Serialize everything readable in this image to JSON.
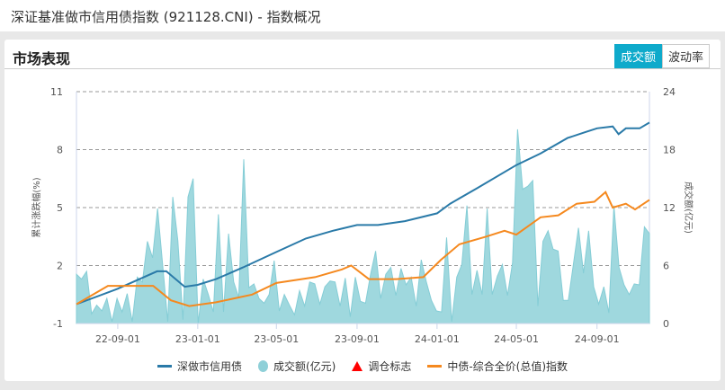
{
  "header": {
    "title": "深证基准做市信用债指数 (921128.CNI) - 指数概况"
  },
  "card": {
    "title": "市场表现",
    "buttons": [
      {
        "label": "成交额",
        "active": true
      },
      {
        "label": "波动率",
        "active": false
      }
    ]
  },
  "chart_data": {
    "type": "line",
    "x_range": [
      "2022-06-30",
      "2024-11-20"
    ],
    "x_ticks": [
      "22-09-01",
      "23-01-01",
      "23-05-01",
      "23-09-01",
      "24-01-01",
      "24-05-01",
      "24-09-01"
    ],
    "x_tick_dates": [
      "2022-09-01",
      "2023-01-01",
      "2023-05-01",
      "2023-09-01",
      "2024-01-01",
      "2024-05-01",
      "2024-09-01"
    ],
    "ylabel": "累计涨跌幅(%)",
    "ylim": [
      -1,
      11
    ],
    "y_ticks": [
      -1,
      2,
      5,
      8,
      11
    ],
    "y2label": "成交额(亿元)",
    "y2lim": [
      0,
      24
    ],
    "y2_ticks": [
      0,
      6,
      12,
      18,
      24
    ],
    "grid": true,
    "legend_position": "bottom",
    "colors": {
      "index": "#2a7aa8",
      "volume": "#8fd0d8",
      "marker": "#ff0000",
      "benchmark": "#f5891f"
    },
    "legend": [
      "深做市信用债",
      "成交额(亿元)",
      "调仓标志",
      "中债-综合全价(总值)指数"
    ],
    "series": [
      {
        "name": "深做市信用债",
        "axis": "left",
        "points": [
          [
            "2022-06-30",
            0.0
          ],
          [
            "2022-09-01",
            0.8
          ],
          [
            "2022-10-31",
            1.7
          ],
          [
            "2022-11-14",
            1.7
          ],
          [
            "2022-12-12",
            0.9
          ],
          [
            "2023-01-01",
            1.0
          ],
          [
            "2023-01-29",
            1.3
          ],
          [
            "2023-03-11",
            1.9
          ],
          [
            "2023-05-01",
            2.7
          ],
          [
            "2023-06-15",
            3.4
          ],
          [
            "2023-07-26",
            3.8
          ],
          [
            "2023-09-01",
            4.1
          ],
          [
            "2023-10-03",
            4.1
          ],
          [
            "2023-11-13",
            4.3
          ],
          [
            "2024-01-01",
            4.7
          ],
          [
            "2024-01-21",
            5.2
          ],
          [
            "2024-03-02",
            6.0
          ],
          [
            "2024-05-01",
            7.2
          ],
          [
            "2024-06-07",
            7.8
          ],
          [
            "2024-07-18",
            8.6
          ],
          [
            "2024-08-14",
            8.9
          ],
          [
            "2024-09-01",
            9.1
          ],
          [
            "2024-09-25",
            9.2
          ],
          [
            "2024-10-04",
            8.8
          ],
          [
            "2024-10-15",
            9.1
          ],
          [
            "2024-11-05",
            9.1
          ],
          [
            "2024-11-20",
            9.4
          ]
        ]
      },
      {
        "name": "中债-综合全价(总值)指数",
        "axis": "left",
        "points": [
          [
            "2022-06-30",
            0.0
          ],
          [
            "2022-08-17",
            0.95
          ],
          [
            "2022-10-25",
            0.95
          ],
          [
            "2022-11-21",
            0.2
          ],
          [
            "2022-12-19",
            -0.1
          ],
          [
            "2023-01-29",
            0.1
          ],
          [
            "2023-03-25",
            0.5
          ],
          [
            "2023-05-01",
            1.1
          ],
          [
            "2023-06-29",
            1.4
          ],
          [
            "2023-08-09",
            1.8
          ],
          [
            "2023-08-23",
            2.0
          ],
          [
            "2023-09-19",
            1.3
          ],
          [
            "2023-10-31",
            1.3
          ],
          [
            "2023-12-11",
            1.4
          ],
          [
            "2024-01-07",
            2.3
          ],
          [
            "2024-02-04",
            3.1
          ],
          [
            "2024-03-16",
            3.5
          ],
          [
            "2024-04-13",
            3.8
          ],
          [
            "2024-05-01",
            3.6
          ],
          [
            "2024-06-07",
            4.5
          ],
          [
            "2024-07-04",
            4.6
          ],
          [
            "2024-08-01",
            5.2
          ],
          [
            "2024-08-28",
            5.3
          ],
          [
            "2024-09-14",
            5.8
          ],
          [
            "2024-09-25",
            5.0
          ],
          [
            "2024-10-15",
            5.2
          ],
          [
            "2024-10-29",
            4.9
          ],
          [
            "2024-11-20",
            5.4
          ]
        ]
      },
      {
        "name": "成交额(亿元)",
        "axis": "right",
        "type": "area",
        "values": [
          5.1,
          4.6,
          5.4,
          1.0,
          1.9,
          1.3,
          2.6,
          0.2,
          2.6,
          1.2,
          3.1,
          0.2,
          4.8,
          4.3,
          8.5,
          6.8,
          11.9,
          6.1,
          0.2,
          13.1,
          8.6,
          0.4,
          13.1,
          15.0,
          0,
          4.6,
          3.0,
          1.2,
          11.3,
          1.2,
          9.3,
          4.3,
          2.7,
          17.0,
          3.7,
          4.1,
          2.6,
          2.1,
          3.0,
          6.5,
          1.3,
          3.0,
          1.9,
          0.9,
          3.4,
          1.8,
          4.3,
          4.1,
          2.0,
          3.8,
          4.4,
          4.3,
          1.8,
          4.7,
          0.7,
          4.8,
          2.3,
          2.1,
          5.1,
          7.5,
          2.6,
          5.1,
          5.8,
          2.9,
          5.7,
          4.0,
          4.8,
          1.8,
          6.6,
          4.3,
          2.4,
          1.3,
          1.2,
          8.9,
          0.2,
          4.8,
          6.1,
          12.2,
          3.0,
          5.5,
          3.0,
          11.9,
          3.0,
          4.9,
          6.1,
          2.9,
          6.3,
          20.1,
          13.9,
          14.2,
          14.8,
          1.8,
          8.5,
          9.6,
          7.7,
          7.5,
          2.4,
          2.4,
          6.1,
          9.9,
          5.2,
          9.6,
          3.8,
          2.0,
          3.8,
          1.1,
          12.2,
          5.8,
          4.0,
          3.0,
          4.1,
          4.0,
          10.0,
          9.3
        ]
      }
    ]
  }
}
